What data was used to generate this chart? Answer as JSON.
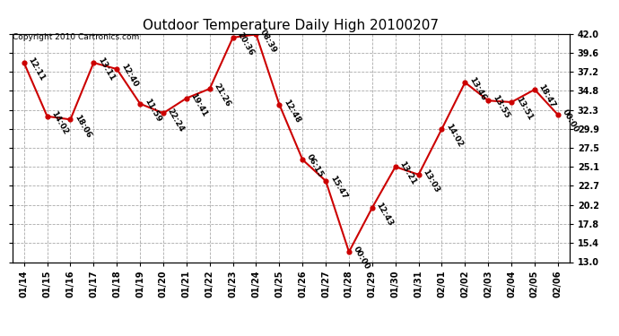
{
  "title": "Outdoor Temperature Daily High 20100207",
  "copyright": "Copyright 2010 Cartronics.com",
  "x_labels": [
    "01/14",
    "01/15",
    "01/16",
    "01/17",
    "01/18",
    "01/19",
    "01/20",
    "01/21",
    "01/22",
    "01/23",
    "01/24",
    "01/25",
    "01/26",
    "01/27",
    "01/28",
    "01/29",
    "01/30",
    "01/31",
    "02/01",
    "02/02",
    "02/03",
    "02/04",
    "02/05",
    "02/06"
  ],
  "y_values": [
    38.3,
    31.5,
    31.1,
    38.3,
    37.5,
    33.1,
    31.9,
    33.8,
    35.0,
    41.5,
    41.9,
    33.0,
    26.0,
    23.3,
    14.3,
    19.9,
    25.1,
    24.1,
    29.9,
    35.8,
    33.5,
    33.3,
    34.9,
    31.7
  ],
  "point_labels": [
    "12:11",
    "14:02",
    "18:06",
    "13:11",
    "12:40",
    "11:59",
    "22:24",
    "19:41",
    "21:26",
    "20:36",
    "08:39",
    "12:48",
    "06:15",
    "15:47",
    "00:00",
    "12:43",
    "13:21",
    "13:03",
    "14:02",
    "13:46",
    "13:55",
    "13:51",
    "18:47",
    "00:00"
  ],
  "line_color": "#cc0000",
  "marker_color": "#cc0000",
  "bg_color": "#ffffff",
  "grid_color": "#aaaaaa",
  "text_color": "#000000",
  "ylim_min": 13.0,
  "ylim_max": 42.0,
  "ytick_values": [
    13.0,
    15.4,
    17.8,
    20.2,
    22.7,
    25.1,
    27.5,
    29.9,
    32.3,
    34.8,
    37.2,
    39.6,
    42.0
  ],
  "ytick_labels": [
    "13.0",
    "15.4",
    "17.8",
    "20.2",
    "22.7",
    "25.1",
    "27.5",
    "29.9",
    "32.3",
    "34.8",
    "37.2",
    "39.6",
    "42.0"
  ],
  "title_fontsize": 11,
  "label_fontsize": 6.5,
  "tick_fontsize": 7,
  "copyright_fontsize": 6.5
}
